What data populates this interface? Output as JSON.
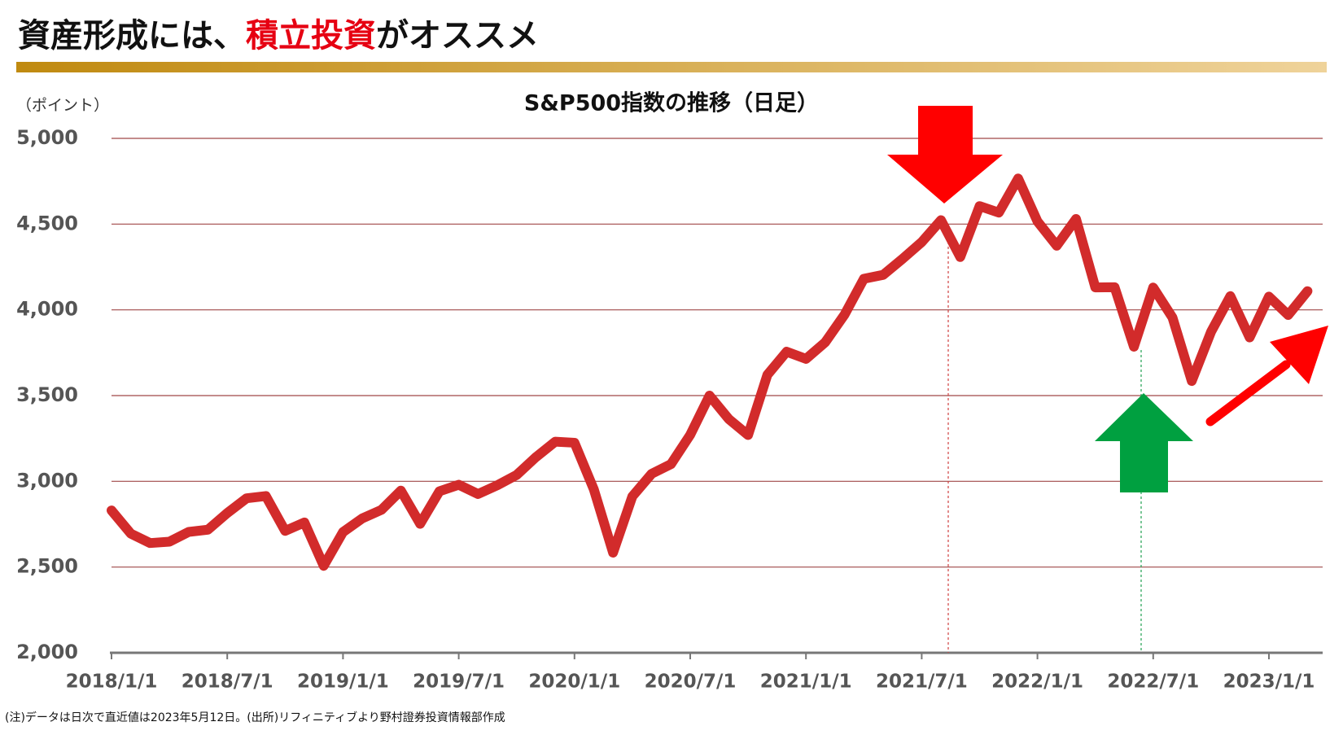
{
  "heading": [
    "資産形成には、",
    "積立投資",
    "がオススメ"
  ],
  "note": "(注)データは日次で直近値は2023年5月12日。(出所)リフィニティブより野村證券投資情報部作成",
  "chart_data": {
    "type": "line",
    "title": "S&P500指数の推移（日足）",
    "y_label": "（ポイント）",
    "categories": [
      "2018/1/1",
      null,
      null,
      null,
      null,
      null,
      "2018/7/1",
      null,
      null,
      null,
      null,
      null,
      "2019/1/1",
      null,
      null,
      null,
      null,
      null,
      "2019/7/1",
      null,
      null,
      null,
      null,
      null,
      "2020/1/1",
      null,
      null,
      null,
      null,
      null,
      "2020/7/1",
      null,
      null,
      null,
      null,
      null,
      "2021/1/1",
      null,
      null,
      null,
      null,
      null,
      "2021/7/1",
      null,
      null,
      null,
      null,
      null,
      "2022/1/1",
      null,
      null,
      null,
      null,
      null,
      "2022/7/1",
      null,
      null,
      null,
      null,
      null,
      "2023/1/1",
      null,
      null
    ],
    "series": [
      {
        "name": "S&P500",
        "color": "#d22b2b",
        "values": [
          2830,
          2695,
          2640,
          2648,
          2705,
          2718,
          2815,
          2901,
          2914,
          2711,
          2760,
          2507,
          2704,
          2784,
          2834,
          2946,
          2752,
          2942,
          2980,
          2926,
          2977,
          3037,
          3141,
          3231,
          3225,
          2954,
          2584,
          2912,
          3044,
          3100,
          3271,
          3500,
          3363,
          3270,
          3621,
          3756,
          3714,
          3811,
          3972,
          4181,
          4204,
          4297,
          4395,
          4523,
          4308,
          4605,
          4567,
          4766,
          4516,
          4374,
          4530,
          4131,
          4132,
          3785,
          4130,
          3955,
          3585,
          3872,
          4080,
          3839,
          4077,
          3970,
          4109
        ]
      }
    ],
    "ylim": [
      2000,
      5000
    ],
    "yticks": [
      {
        "value": 2000,
        "label": "2,000"
      },
      {
        "value": 2500,
        "label": "2,500"
      },
      {
        "value": 3000,
        "label": "3,000"
      },
      {
        "value": 3500,
        "label": "3,500"
      },
      {
        "value": 4000,
        "label": "4,000"
      },
      {
        "value": 4500,
        "label": "4,500"
      },
      {
        "value": 5000,
        "label": "5,000"
      }
    ],
    "grid": true
  }
}
